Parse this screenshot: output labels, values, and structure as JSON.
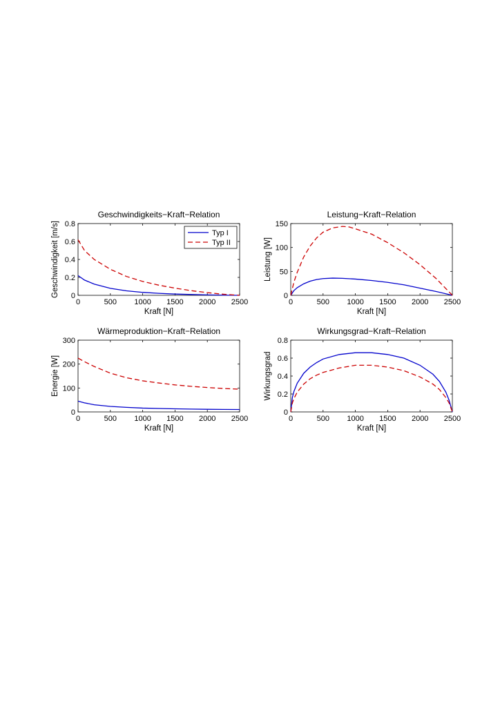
{
  "chart_data": [
    {
      "type": "line",
      "title": "Geschwindigkeits−Kraft−Relation",
      "xlabel": "Kraft [N]",
      "ylabel": "Geschwindigkeit [m/s]",
      "xlim": [
        0,
        2500
      ],
      "ylim": [
        0,
        0.8
      ],
      "xticks": [
        0,
        500,
        1000,
        1500,
        2000,
        2500
      ],
      "yticks": [
        0,
        0.2,
        0.4,
        0.6,
        0.8
      ],
      "grid": false,
      "legend": {
        "position": "top-right",
        "entries": [
          "Typ I",
          "Typ II"
        ]
      },
      "series": [
        {
          "name": "Typ I",
          "color": "#0000cc",
          "dash": "solid",
          "x": [
            0,
            100,
            250,
            500,
            750,
            1000,
            1250,
            1500,
            1750,
            2000,
            2250,
            2500
          ],
          "y": [
            0.22,
            0.17,
            0.125,
            0.078,
            0.05,
            0.033,
            0.022,
            0.014,
            0.009,
            0.005,
            0.002,
            0
          ]
        },
        {
          "name": "Typ II",
          "color": "#cc0000",
          "dash": "dashed",
          "x": [
            0,
            100,
            250,
            500,
            750,
            1000,
            1250,
            1500,
            1750,
            2000,
            2250,
            2500
          ],
          "y": [
            0.62,
            0.5,
            0.4,
            0.29,
            0.21,
            0.155,
            0.113,
            0.08,
            0.052,
            0.03,
            0.012,
            0
          ]
        }
      ]
    },
    {
      "type": "line",
      "title": "Leistung−Kraft−Relation",
      "xlabel": "Kraft [N]",
      "ylabel": "Leistung [W]",
      "xlim": [
        0,
        2500
      ],
      "ylim": [
        0,
        150
      ],
      "xticks": [
        0,
        500,
        1000,
        1500,
        2000,
        2500
      ],
      "yticks": [
        0,
        50,
        100,
        150
      ],
      "grid": false,
      "series": [
        {
          "name": "Typ I",
          "color": "#0000cc",
          "dash": "solid",
          "x": [
            0,
            50,
            100,
            200,
            300,
            400,
            500,
            650,
            800,
            1000,
            1250,
            1500,
            1750,
            2000,
            2250,
            2500
          ],
          "y": [
            0,
            10,
            16,
            24,
            29.5,
            33,
            35,
            36,
            35.5,
            34,
            31,
            27,
            22,
            15,
            8,
            0
          ]
        },
        {
          "name": "Typ II",
          "color": "#cc0000",
          "dash": "dashed",
          "x": [
            0,
            50,
            100,
            200,
            300,
            400,
            500,
            650,
            800,
            900,
            1000,
            1250,
            1500,
            1750,
            2000,
            2250,
            2500
          ],
          "y": [
            0,
            28,
            48,
            80,
            103,
            120,
            132,
            141,
            144,
            143,
            139,
            128,
            110,
            89,
            64,
            35,
            0
          ]
        }
      ]
    },
    {
      "type": "line",
      "title": "Wärmeproduktion−Kraft−Relation",
      "xlabel": "Kraft [N]",
      "ylabel": "Energie [W]",
      "xlim": [
        0,
        2500
      ],
      "ylim": [
        0,
        300
      ],
      "xticks": [
        0,
        500,
        1000,
        1500,
        2000,
        2500
      ],
      "yticks": [
        0,
        100,
        200,
        300
      ],
      "grid": false,
      "series": [
        {
          "name": "Typ I",
          "color": "#0000cc",
          "dash": "solid",
          "x": [
            0,
            100,
            250,
            500,
            750,
            1000,
            1250,
            1500,
            1750,
            2000,
            2250,
            2500
          ],
          "y": [
            45,
            38,
            30,
            23,
            19,
            16,
            14.5,
            13,
            12,
            11,
            10.5,
            10
          ]
        },
        {
          "name": "Typ II",
          "color": "#cc0000",
          "dash": "dashed",
          "x": [
            0,
            100,
            250,
            500,
            750,
            1000,
            1250,
            1500,
            1750,
            2000,
            2250,
            2500
          ],
          "y": [
            225,
            210,
            190,
            162,
            143,
            130,
            121,
            113,
            107,
            102,
            98,
            95
          ]
        }
      ]
    },
    {
      "type": "line",
      "title": "Wirkungsgrad−Kraft−Relation",
      "xlabel": "Kraft [N]",
      "ylabel": "Wirkungsgrad",
      "xlim": [
        0,
        2500
      ],
      "ylim": [
        0,
        0.8
      ],
      "xticks": [
        0,
        500,
        1000,
        1500,
        2000,
        2500
      ],
      "yticks": [
        0,
        0.2,
        0.4,
        0.6,
        0.8
      ],
      "grid": false,
      "series": [
        {
          "name": "Typ I",
          "color": "#0000cc",
          "dash": "solid",
          "x": [
            0,
            25,
            50,
            100,
            200,
            300,
            400,
            500,
            750,
            1000,
            1250,
            1500,
            1750,
            2000,
            2200,
            2300,
            2400,
            2450,
            2500
          ],
          "y": [
            0,
            0.16,
            0.23,
            0.32,
            0.43,
            0.5,
            0.55,
            0.59,
            0.64,
            0.66,
            0.66,
            0.64,
            0.6,
            0.52,
            0.42,
            0.34,
            0.22,
            0.13,
            0
          ]
        },
        {
          "name": "Typ II",
          "color": "#cc0000",
          "dash": "dashed",
          "x": [
            0,
            25,
            50,
            100,
            200,
            300,
            400,
            500,
            750,
            1000,
            1250,
            1500,
            1750,
            2000,
            2200,
            2300,
            2400,
            2450,
            2500
          ],
          "y": [
            0,
            0.1,
            0.15,
            0.22,
            0.31,
            0.37,
            0.41,
            0.44,
            0.49,
            0.52,
            0.52,
            0.5,
            0.46,
            0.39,
            0.31,
            0.25,
            0.16,
            0.1,
            0
          ]
        }
      ]
    }
  ]
}
